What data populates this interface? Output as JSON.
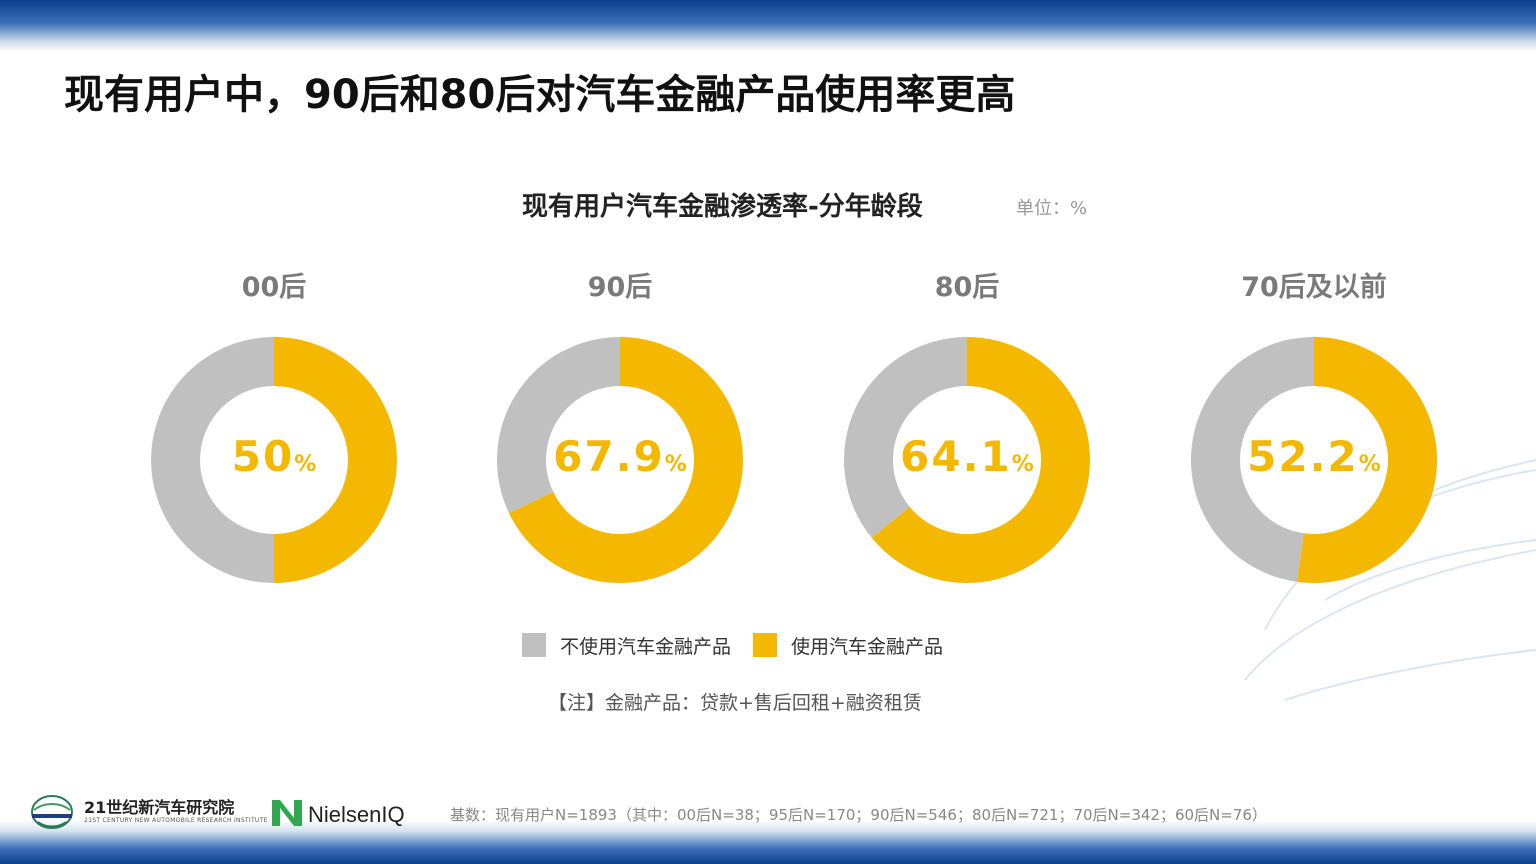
{
  "header": {
    "title": "现有用户中，90后和80后对汽车金融产品使用率更高"
  },
  "chart_data": {
    "type": "pie",
    "style": "donut",
    "title": "现有用户汽车金融渗透率-分年龄段",
    "unit": "单位：%",
    "categories": [
      "00后",
      "90后",
      "80后",
      "70后及以前"
    ],
    "series": [
      {
        "name": "不使用汽车金融产品",
        "color": "#c0c0c0",
        "values": [
          50,
          32.1,
          35.9,
          47.8
        ]
      },
      {
        "name": "使用汽车金融产品",
        "color": "#f5b800",
        "values": [
          50,
          67.9,
          64.1,
          52.2
        ]
      }
    ],
    "center_labels": [
      "50",
      "67.9",
      "64.1",
      "52.2"
    ],
    "percent_sign": "%",
    "legend_position": "bottom"
  },
  "note": "【注】金融产品：贷款+售后回租+融资租赁",
  "footer": {
    "logo_21": {
      "name": "21世纪新汽车研究院",
      "en": "21ST CENTURY NEW AUTOMOBILE RESEARCH INSTITUTE"
    },
    "logo_niq": {
      "name": "NielsenIQ"
    },
    "base_note": "基数：现有用户N=1893（其中：00后N=38；95后N=170；90后N=546；80后N=721；70后N=342；60后N=76）"
  },
  "colors": {
    "used": "#f5b800",
    "not_used": "#c0c0c0",
    "band": "#0d3f8f"
  }
}
